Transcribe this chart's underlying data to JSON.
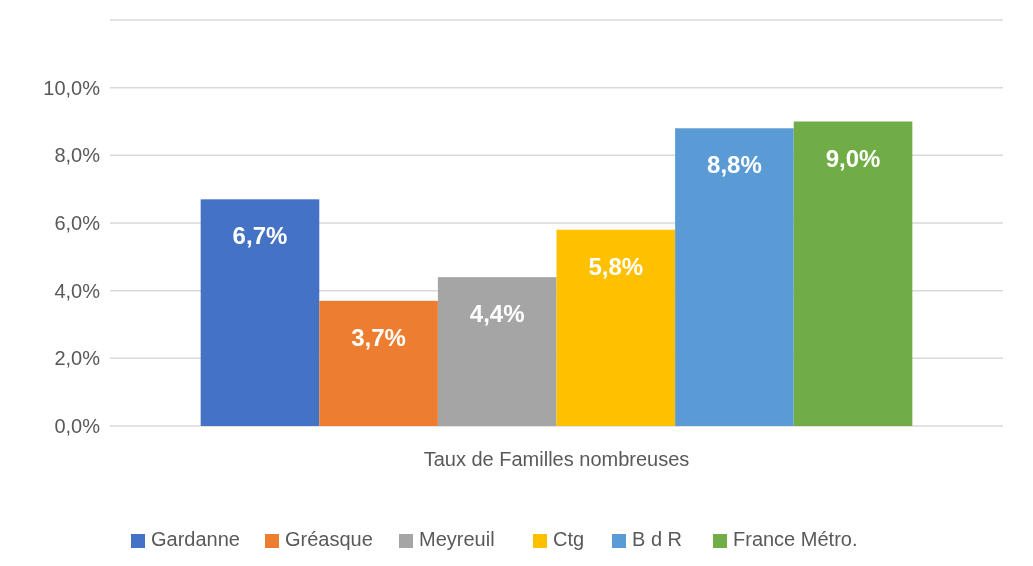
{
  "chart_data": {
    "type": "bar",
    "categories": [
      "Taux de Familles nombreuses"
    ],
    "series": [
      {
        "name": "Gardanne",
        "color": "#4472c4",
        "values": [
          6.7
        ],
        "value_labels": [
          "6,7%"
        ]
      },
      {
        "name": "Gréasque",
        "color": "#ed7d31",
        "values": [
          3.7
        ],
        "value_labels": [
          "3,7%"
        ]
      },
      {
        "name": "Meyreuil",
        "color": "#a5a5a5",
        "values": [
          4.4
        ],
        "value_labels": [
          "4,4%"
        ]
      },
      {
        "name": "Ctg",
        "color": "#ffc000",
        "values": [
          5.8
        ],
        "value_labels": [
          "5,8%"
        ]
      },
      {
        "name": "B d R",
        "color": "#5b9bd5",
        "values": [
          8.8
        ],
        "value_labels": [
          "8,8%"
        ]
      },
      {
        "name": "France Métro.",
        "color": "#70ad47",
        "values": [
          9.0
        ],
        "value_labels": [
          "9,0%"
        ]
      }
    ],
    "ylim": [
      0,
      12
    ],
    "yticks": [
      {
        "value": 0,
        "label": "0,0%"
      },
      {
        "value": 2,
        "label": "2,0%"
      },
      {
        "value": 4,
        "label": "4,0%"
      },
      {
        "value": 6,
        "label": "6,0%"
      },
      {
        "value": 8,
        "label": "8,0%"
      },
      {
        "value": 10,
        "label": "10,0%"
      },
      {
        "value": 12,
        "label": null
      }
    ],
    "grid": "y",
    "legend": "bottom"
  }
}
